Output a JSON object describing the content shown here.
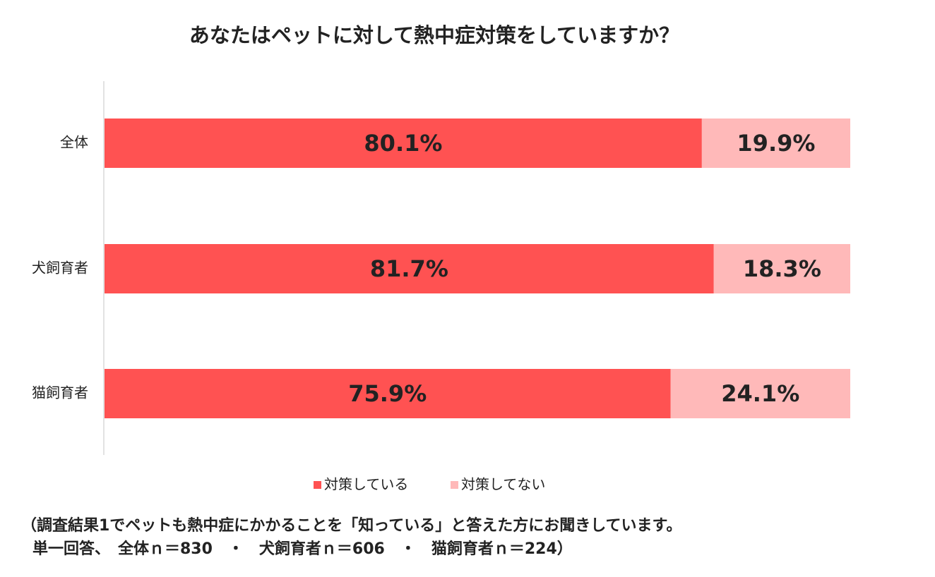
{
  "chart_data": {
    "type": "stacked-bar-horizontal",
    "title": "あなたはペットに対して熱中症対策をしていますか？",
    "categories": [
      "全体",
      "犬飼育者",
      "猫飼育者"
    ],
    "series": [
      {
        "name": "対策している",
        "color": "#ff5252",
        "values": [
          80.1,
          81.7,
          75.9
        ],
        "value_labels": [
          "80.1%",
          "81.7%",
          "75.9%"
        ]
      },
      {
        "name": "対策してない",
        "color": "#ffb9b9",
        "values": [
          19.9,
          18.3,
          24.1
        ],
        "value_labels": [
          "19.9%",
          "18.3%",
          "24.1%"
        ]
      }
    ],
    "xlim": [
      0,
      100
    ],
    "notes": [
      "（調査結果1でペットも熱中症にかかることを「知っている」と答えた方にお聞きしています。",
      "単一回答、　全体ｎ＝830　・　犬飼育者ｎ＝606　・　猫飼育者ｎ＝224）"
    ]
  }
}
